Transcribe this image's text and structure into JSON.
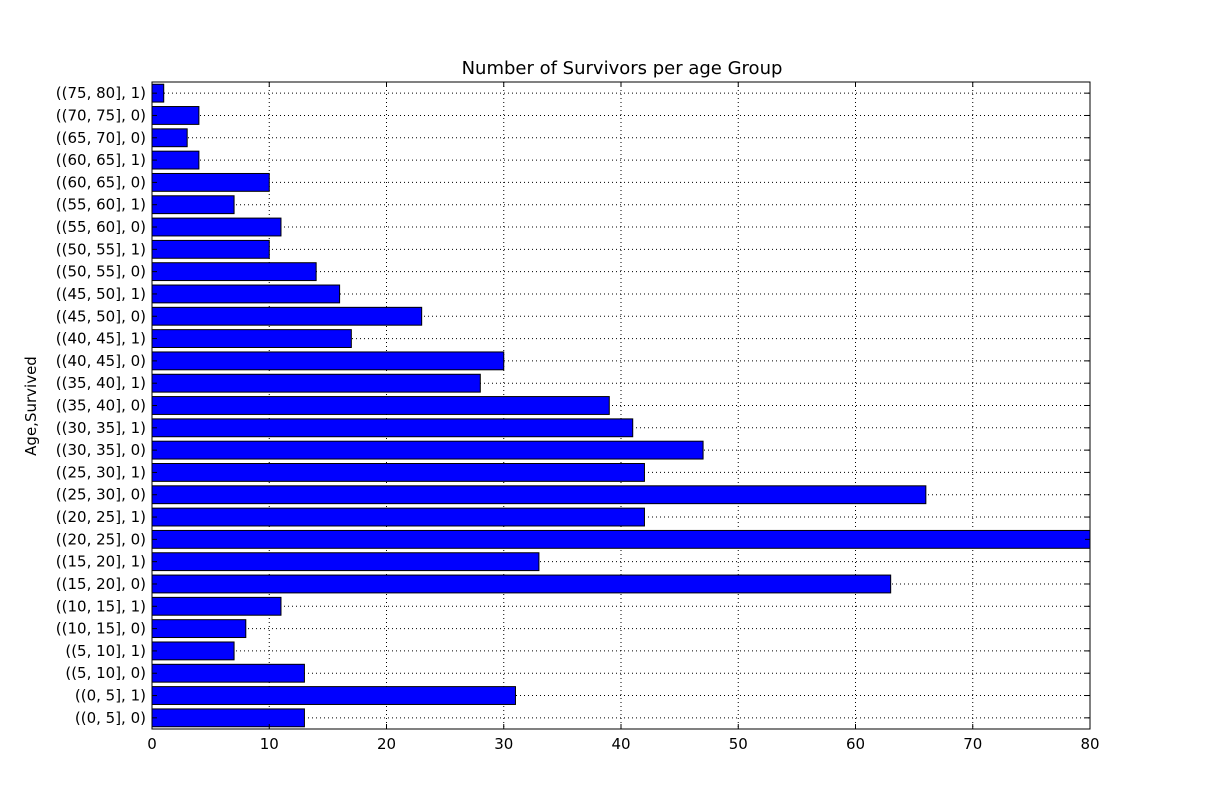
{
  "chart_data": {
    "type": "bar",
    "orientation": "horizontal",
    "title": "Number of Survivors per age Group",
    "xlabel": "",
    "ylabel": "Age,Survived",
    "xlim": [
      0,
      80
    ],
    "xticks": [
      0,
      10,
      20,
      30,
      40,
      50,
      60,
      70,
      80
    ],
    "grid": true,
    "bar_color": "#0000ff",
    "categories": [
      "((0, 5], 0)",
      "((0, 5], 1)",
      "((5, 10], 0)",
      "((5, 10], 1)",
      "((10, 15], 0)",
      "((10, 15], 1)",
      "((15, 20], 0)",
      "((15, 20], 1)",
      "((20, 25], 0)",
      "((20, 25], 1)",
      "((25, 30], 0)",
      "((25, 30], 1)",
      "((30, 35], 0)",
      "((30, 35], 1)",
      "((35, 40], 0)",
      "((35, 40], 1)",
      "((40, 45], 0)",
      "((40, 45], 1)",
      "((45, 50], 0)",
      "((45, 50], 1)",
      "((50, 55], 0)",
      "((50, 55], 1)",
      "((55, 60], 0)",
      "((55, 60], 1)",
      "((60, 65], 0)",
      "((60, 65], 1)",
      "((65, 70], 0)",
      "((70, 75], 0)",
      "((75, 80], 1)"
    ],
    "values": [
      13,
      31,
      13,
      7,
      8,
      11,
      63,
      33,
      80,
      42,
      66,
      42,
      47,
      41,
      39,
      28,
      30,
      17,
      23,
      16,
      14,
      10,
      11,
      7,
      10,
      4,
      3,
      4,
      1
    ]
  }
}
